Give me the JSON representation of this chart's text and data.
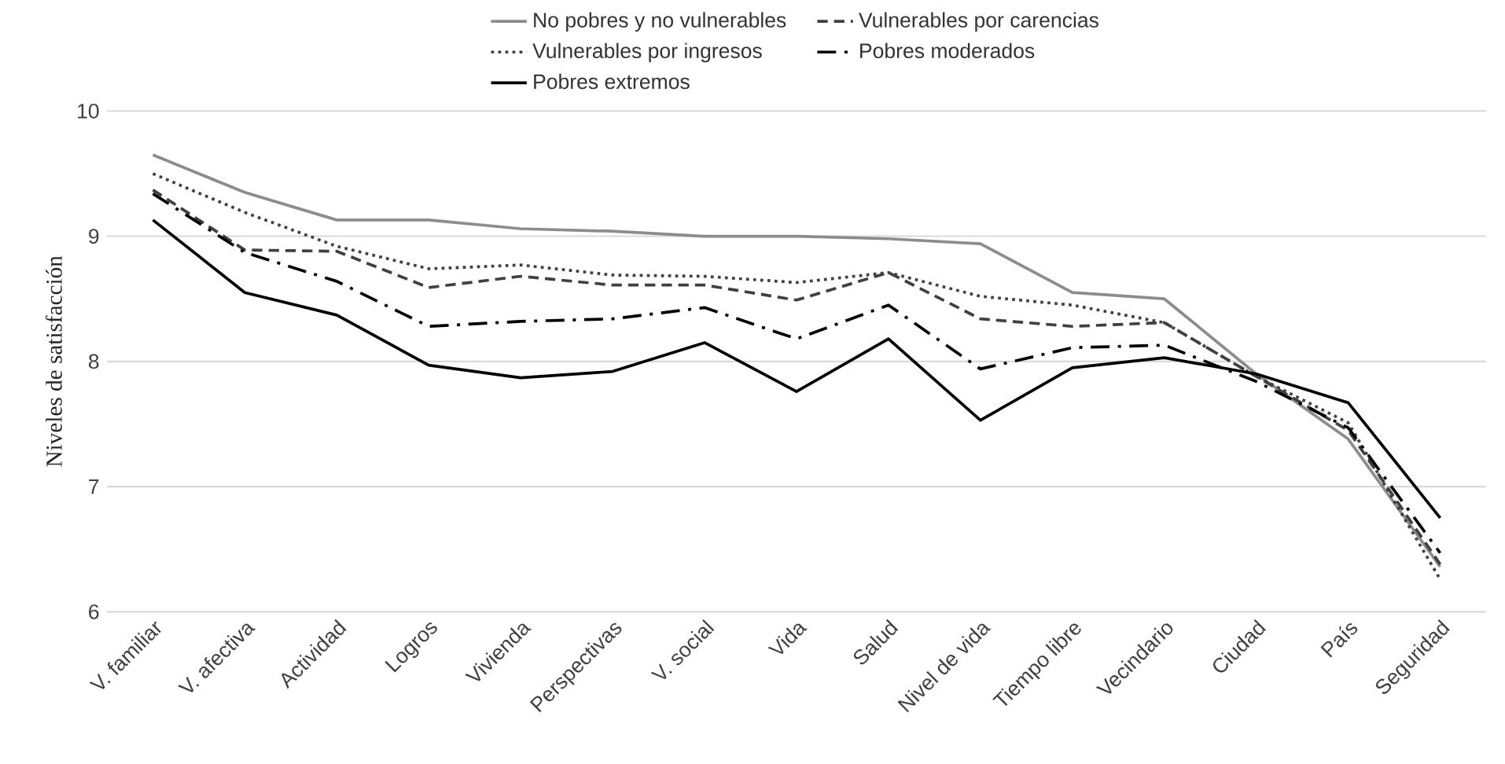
{
  "chart_data": {
    "type": "line",
    "ylabel": "Niveles de satisfacción",
    "categories": [
      "V. familiar",
      "V. afectiva",
      "Actividad",
      "Logros",
      "Vivienda",
      "Perspectivas",
      "V. social",
      "Vida",
      "Salud",
      "Nivel de vida",
      "Tiempo libre",
      "Vecindario",
      "Ciudad",
      "País",
      "Seguridad"
    ],
    "series": [
      {
        "name": "No pobres y no vulnerables",
        "color": "#8c8c8c",
        "line_style": "solid",
        "values": [
          9.65,
          9.35,
          9.13,
          9.13,
          9.06,
          9.04,
          9.0,
          9.0,
          8.98,
          8.94,
          8.55,
          8.5,
          7.9,
          7.38,
          6.36
        ]
      },
      {
        "name": "Vulnerables por carencias",
        "color": "#404040",
        "line_style": "dashed",
        "values": [
          9.37,
          8.89,
          8.88,
          8.59,
          8.68,
          8.61,
          8.61,
          8.49,
          8.71,
          8.34,
          8.28,
          8.31,
          7.88,
          7.45,
          6.38
        ]
      },
      {
        "name": "Vulnerables por ingresos",
        "color": "#404040",
        "line_style": "dotted",
        "values": [
          9.5,
          9.19,
          8.92,
          8.74,
          8.77,
          8.69,
          8.68,
          8.63,
          8.71,
          8.52,
          8.45,
          8.31,
          7.88,
          7.51,
          6.26
        ]
      },
      {
        "name": "Pobres moderados",
        "color": "#000000",
        "line_style": "dashdot",
        "values": [
          9.34,
          8.87,
          8.64,
          8.28,
          8.32,
          8.34,
          8.43,
          8.18,
          8.45,
          7.94,
          8.11,
          8.13,
          7.84,
          7.47,
          6.47
        ]
      },
      {
        "name": "Pobres extremos",
        "color": "#000000",
        "line_style": "solid",
        "values": [
          9.13,
          8.55,
          8.37,
          7.97,
          7.87,
          7.92,
          8.15,
          7.76,
          8.18,
          7.53,
          7.95,
          8.03,
          7.9,
          7.67,
          6.75
        ]
      }
    ],
    "ylim": [
      6,
      10
    ],
    "yticks": [
      6,
      7,
      8,
      9,
      10
    ],
    "grid": "y",
    "legend": "top",
    "marker": "none"
  }
}
